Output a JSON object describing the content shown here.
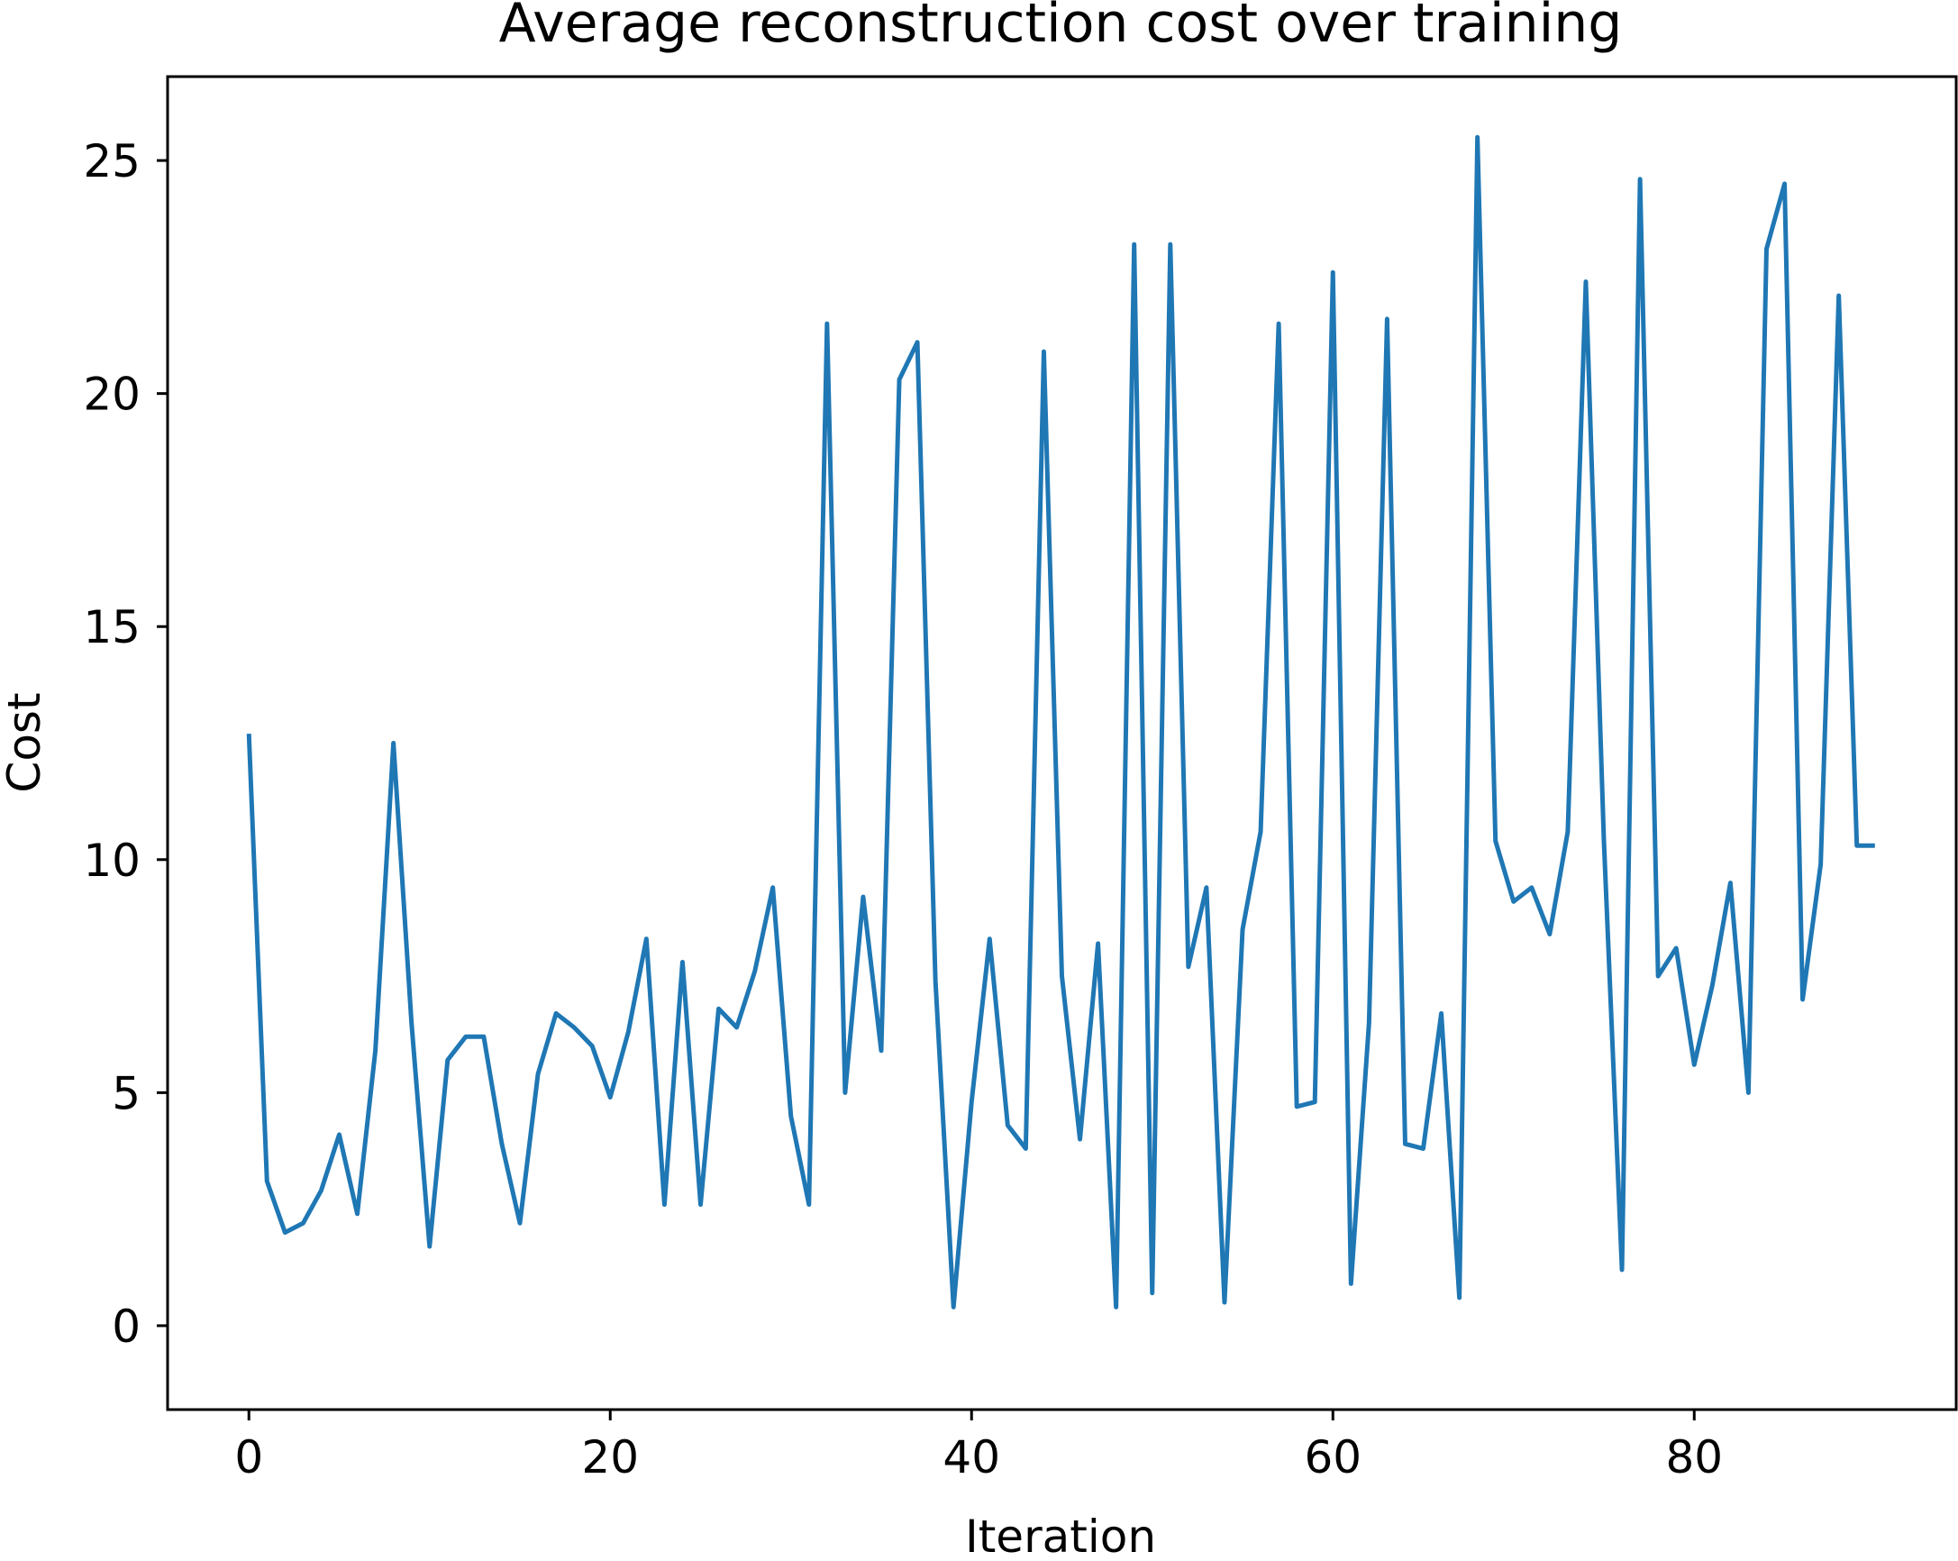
{
  "chart_data": {
    "type": "line",
    "title": "Average reconstruction cost over training",
    "xlabel": "Iteration",
    "ylabel": "Cost",
    "xlim": [
      -4.5,
      94.5
    ],
    "ylim": [
      -1.8,
      26.8
    ],
    "xticks": [
      0,
      20,
      40,
      60,
      80
    ],
    "yticks": [
      0,
      5,
      10,
      15,
      20,
      25
    ],
    "grid": false,
    "line_color": "#1f77b4",
    "series": [
      {
        "x": [
          0,
          1,
          2,
          3,
          4,
          5,
          6,
          7,
          8,
          9,
          10,
          11,
          12,
          13,
          14,
          15,
          16,
          17,
          18,
          19,
          20,
          21,
          22,
          23,
          24,
          25,
          26,
          27,
          28,
          29,
          30,
          31,
          32,
          33,
          34,
          35,
          36,
          37,
          38,
          39,
          40,
          41,
          42,
          43,
          44,
          45,
          46,
          47,
          48,
          49,
          50,
          51,
          52,
          53,
          54,
          55,
          56,
          57,
          58,
          59,
          60,
          61,
          62,
          63,
          64,
          65,
          66,
          67,
          68,
          69,
          70,
          71,
          72,
          73,
          74,
          75,
          76,
          77,
          78,
          79,
          80,
          81,
          82,
          83,
          84,
          85,
          86,
          87,
          88,
          89,
          90
        ],
        "values": [
          12.7,
          3.1,
          2.0,
          2.2,
          2.9,
          4.1,
          2.4,
          5.9,
          12.5,
          6.5,
          1.7,
          5.7,
          6.2,
          6.2,
          3.9,
          2.2,
          5.4,
          6.7,
          6.4,
          6.0,
          4.9,
          6.3,
          8.3,
          2.6,
          7.8,
          2.6,
          6.8,
          6.4,
          7.6,
          9.4,
          4.5,
          2.6,
          21.5,
          5.0,
          9.2,
          5.9,
          20.3,
          21.1,
          7.4,
          0.4,
          4.8,
          8.3,
          4.3,
          3.8,
          20.9,
          7.5,
          4.0,
          8.2,
          0.4,
          23.2,
          0.7,
          23.2,
          7.7,
          9.4,
          0.5,
          8.5,
          10.6,
          21.5,
          4.7,
          4.8,
          22.6,
          0.9,
          6.5,
          21.6,
          3.9,
          3.8,
          6.7,
          0.6,
          25.5,
          10.4,
          9.1,
          9.4,
          8.4,
          10.6,
          22.4,
          10.4,
          1.2,
          24.6,
          7.5,
          8.1,
          5.6,
          7.3,
          9.5,
          5.0,
          23.1,
          24.5,
          7.0,
          9.9,
          22.1,
          10.3,
          10.3
        ]
      }
    ]
  }
}
